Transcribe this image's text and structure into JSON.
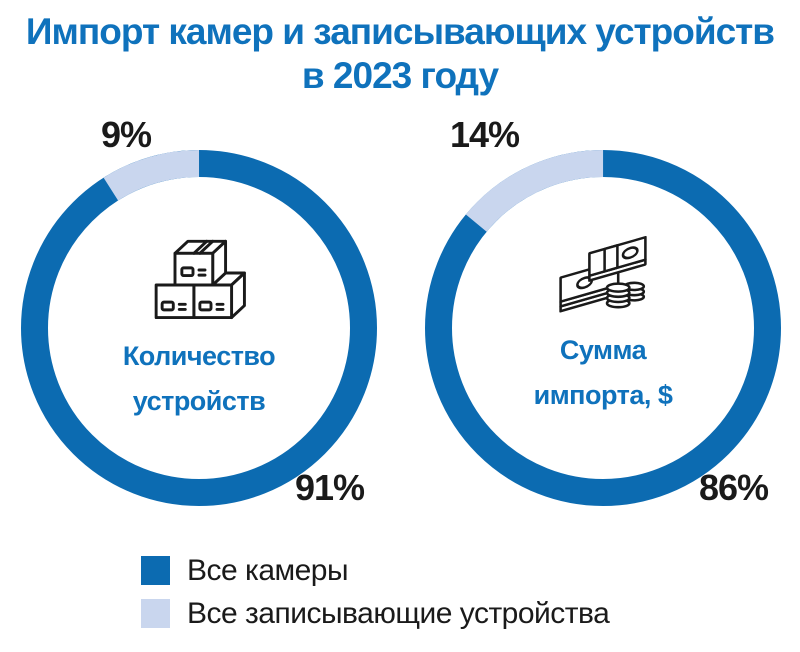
{
  "title": {
    "line1": "Импорт камер и записывающих устройств",
    "line2": "в 2023 году"
  },
  "colors": {
    "cameras_blue": "#0C6BB1",
    "recorders_light_blue": "#C9D6EE",
    "blue_text": "#0F72BC",
    "black_text": "#1A1A1A"
  },
  "legend": {
    "items": [
      {
        "label": "Все камеры",
        "color_key": "cameras_blue"
      },
      {
        "label": "Все записывающие устройства",
        "color_key": "recorders_light_blue"
      }
    ]
  },
  "chart_data": [
    {
      "type": "pie",
      "style": "donut",
      "title": "Количество устройств",
      "center_label_lines": [
        "Количество",
        "устройств"
      ],
      "icon": "boxes-icon",
      "categories": [
        "Все камеры",
        "Все записывающие устройства"
      ],
      "values": [
        91,
        9
      ],
      "unit": "%",
      "labels": [
        "91%",
        "9%"
      ],
      "label_positions": [
        "bottom-right",
        "top-left"
      ],
      "layout": "light segment ends at 12 o'clock and sweeps counterclockwise; ring thickness ~27px"
    },
    {
      "type": "pie",
      "style": "donut",
      "title": "Сумма импорта, $",
      "center_label_lines": [
        "Сумма",
        "импорта, $"
      ],
      "icon": "money-icon",
      "categories": [
        "Все камеры",
        "Все записывающие устройства"
      ],
      "values": [
        86,
        14
      ],
      "unit": "%",
      "labels": [
        "86%",
        "14%"
      ],
      "label_positions": [
        "bottom-right",
        "top-left"
      ],
      "layout": "light segment ends at 12 o'clock and sweeps counterclockwise; ring thickness ~27px"
    }
  ]
}
